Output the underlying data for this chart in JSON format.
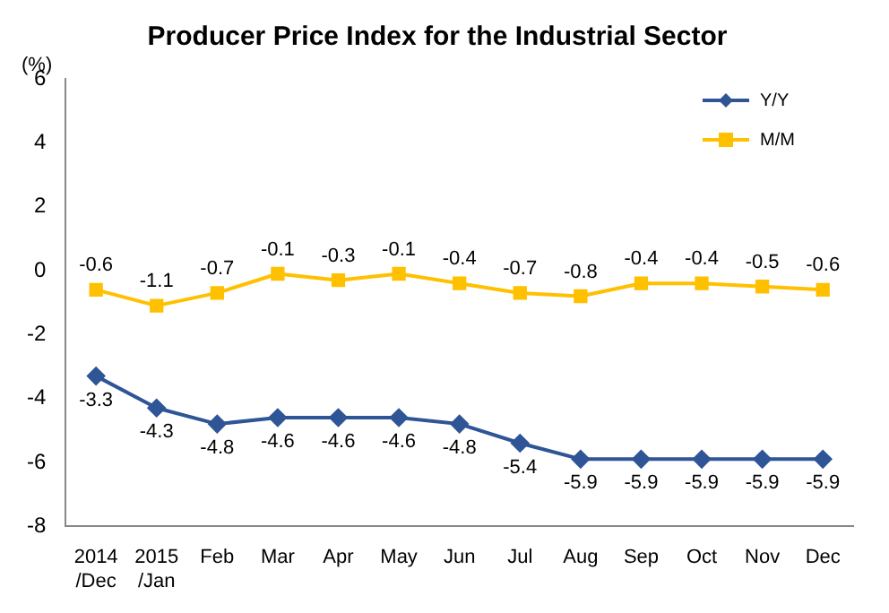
{
  "chart_data": {
    "type": "line",
    "title": "Producer Price Index for the Industrial Sector",
    "ylabel": "(%)",
    "categories": [
      "2014\n/Dec",
      "2015\n/Jan",
      "Feb",
      "Mar",
      "Apr",
      "May",
      "Jun",
      "Jul",
      "Aug",
      "Sep",
      "Oct",
      "Nov",
      "Dec"
    ],
    "series": [
      {
        "name": "Y/Y",
        "color": "#2f5597",
        "marker": "diamond",
        "values": [
          -3.3,
          -4.3,
          -4.8,
          -4.6,
          -4.6,
          -4.6,
          -4.8,
          -5.4,
          -5.9,
          -5.9,
          -5.9,
          -5.9,
          -5.9
        ]
      },
      {
        "name": "M/M",
        "color": "#ffc000",
        "marker": "square",
        "values": [
          -0.6,
          -1.1,
          -0.7,
          -0.1,
          -0.3,
          -0.1,
          -0.4,
          -0.7,
          -0.8,
          -0.4,
          -0.4,
          -0.5,
          -0.6
        ]
      }
    ],
    "ylim": [
      -8,
      6
    ],
    "yticks": [
      -8,
      -6,
      -4,
      -2,
      0,
      2,
      4,
      6
    ],
    "grid": false,
    "legend": "top right",
    "data_labels": true
  }
}
